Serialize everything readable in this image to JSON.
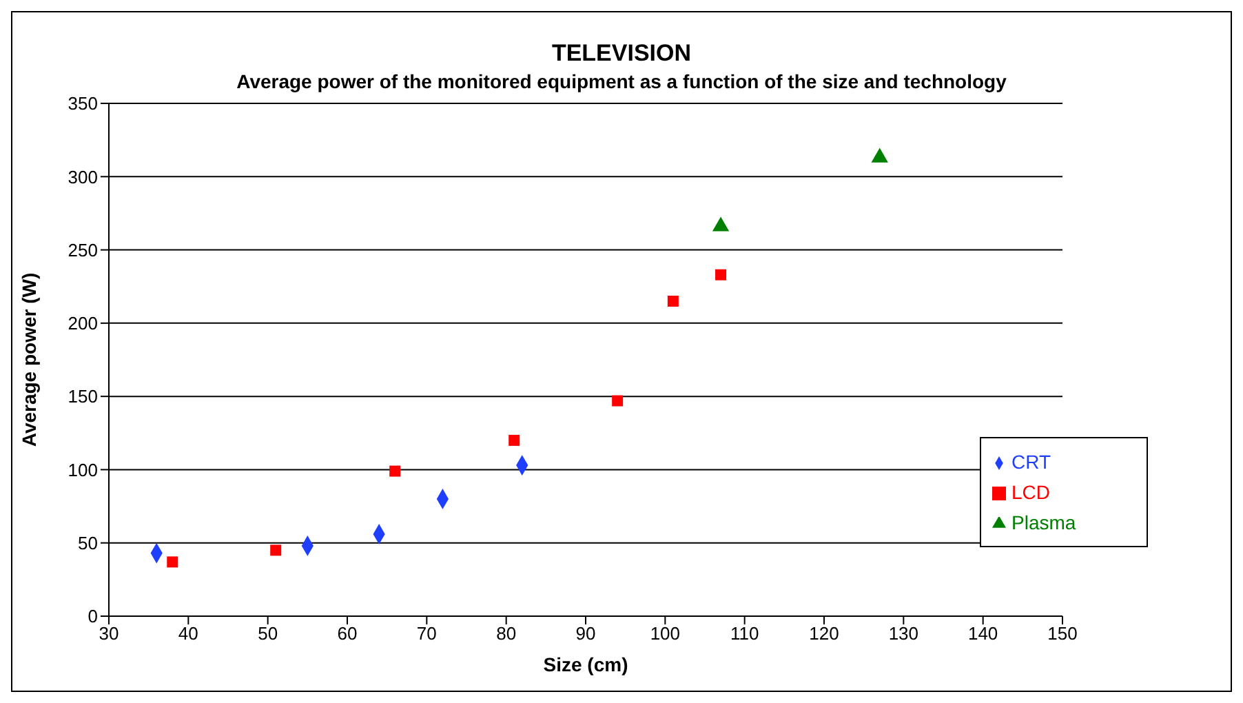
{
  "chart_data": {
    "type": "scatter",
    "title": "TELEVISION",
    "subtitle": "Average power of the monitored equipment as a function of the size and technology",
    "xlabel": "Size (cm)",
    "ylabel": "Average power (W)",
    "series": [
      {
        "name": "CRT",
        "color": "#1f3fff",
        "marker": "diamond",
        "x": [
          36,
          55,
          64,
          72,
          82
        ],
        "values": [
          43,
          48,
          56,
          80,
          103
        ]
      },
      {
        "name": "LCD",
        "color": "#ff0000",
        "marker": "square",
        "x": [
          38,
          51,
          66,
          81,
          94,
          101,
          107
        ],
        "values": [
          37,
          45,
          99,
          120,
          147,
          215,
          233
        ]
      },
      {
        "name": "Plasma",
        "color": "#008000",
        "marker": "triangle",
        "x": [
          107,
          127
        ],
        "values": [
          266,
          313
        ]
      }
    ],
    "xlim": [
      30,
      150
    ],
    "xticks": [
      30,
      40,
      50,
      60,
      70,
      80,
      90,
      100,
      110,
      120,
      130,
      140,
      150
    ],
    "ylim": [
      0,
      350
    ],
    "yticks": [
      0,
      50,
      100,
      150,
      200,
      250,
      300,
      350
    ],
    "grid": "y",
    "legend": "bottom right"
  }
}
